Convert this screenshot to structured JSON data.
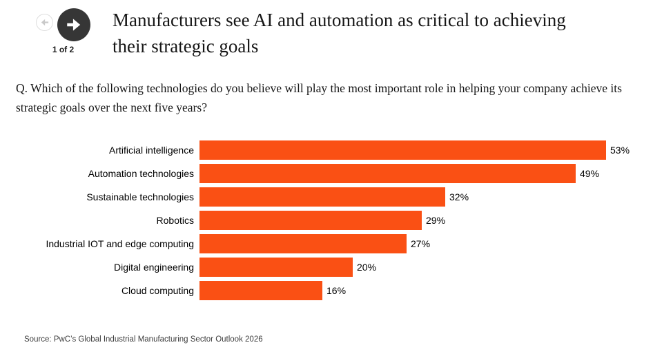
{
  "pagination": {
    "label": "1 of 2",
    "prev_icon": "arrow-left-icon",
    "next_icon": "arrow-right-icon"
  },
  "header": {
    "title": "Manufacturers see AI and automation as critical to achieving their strategic goals"
  },
  "question": "Q. Which of the following technologies do you believe will play the most important role in helping your company achieve its strategic goals over the next five years?",
  "chart_data": {
    "type": "bar",
    "orientation": "horizontal",
    "title": "",
    "categories": [
      "Artificial intelligence",
      "Automation technologies",
      "Sustainable technologies",
      "Robotics",
      "Industrial IOT and edge computing",
      "Digital engineering",
      "Cloud computing"
    ],
    "values": [
      53,
      49,
      32,
      29,
      27,
      20,
      16
    ],
    "value_suffix": "%",
    "bar_color": "#FA5014",
    "label_color": "#000000",
    "xlim": [
      0,
      57
    ],
    "grid": false,
    "legend": false
  },
  "source": "Source: PwC’s Global Industrial Manufacturing Sector Outlook 2026",
  "colors": {
    "accent_orange": "#FA5014",
    "nav_button_dark": "#363636",
    "nav_button_light_border": "#DEDEDE",
    "nav_arrow_light": "#C9C9C9",
    "text_primary": "#161616",
    "source_text": "#3D3D3D"
  }
}
